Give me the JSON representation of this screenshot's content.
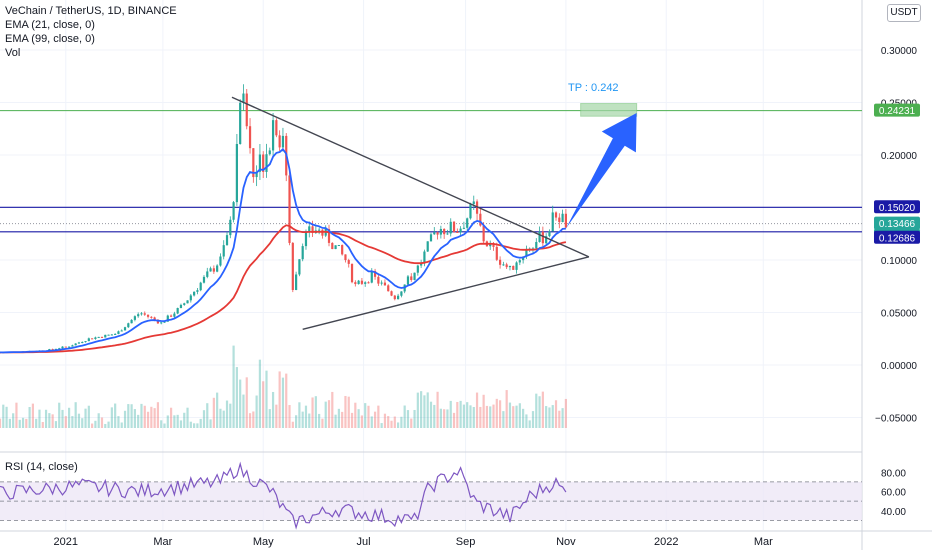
{
  "header": {
    "symbol_line": "VeChain / TetherUS, 1D, BINANCE",
    "ema21_label": "EMA (21, close, 0)",
    "ema99_label": "EMA (99, close, 0)",
    "vol_label": "Vol",
    "currency_button": "USDT"
  },
  "rsi_panel": {
    "label": "RSI (14, close)",
    "ticks": [
      "80.00",
      "60.00",
      "40.00"
    ]
  },
  "annotations": {
    "tp_text": "TP : 0.242"
  },
  "price_axis": {
    "ticks": [
      "0.30000",
      "0.25000",
      "0.20000",
      "0.15000",
      "0.10000",
      "0.05000",
      "0.00000",
      "−0.05000"
    ],
    "tags": [
      {
        "text": "0.24231",
        "color": "#4caf50"
      },
      {
        "text": "0.15020",
        "color": "#1a1aa6"
      },
      {
        "text": "0.13466",
        "color": "#26a69a"
      },
      {
        "text": "13:54:36",
        "color": "#26a69a"
      },
      {
        "text": "0.12686",
        "color": "#1a1aa6"
      }
    ]
  },
  "time_axis": {
    "labels": [
      "2021",
      "Mar",
      "May",
      "Jul",
      "Sep",
      "Nov",
      "2022",
      "Mar"
    ]
  },
  "colors": {
    "bull": "#26a69a",
    "bear": "#ef5350",
    "ema21": "#2962ff",
    "ema99": "#e53935",
    "rsi": "#7e57c2",
    "tp_line": "#4caf50",
    "level_line": "#1a1aa6",
    "arrow": "#2962ff"
  },
  "chart_data": {
    "type": "candlestick",
    "title": "VeChain / TetherUS, 1D, BINANCE",
    "x_range": [
      "2020-11-22",
      "2022-04-30"
    ],
    "y_range": [
      -0.08,
      0.32
    ],
    "horizontal_levels": [
      0.24231,
      0.1502,
      0.12686
    ],
    "last_price": 0.13466,
    "take_profit": 0.242,
    "price_path": [
      [
        "2020-11-22",
        0.012
      ],
      [
        "2020-12-20",
        0.014
      ],
      [
        "2021-01-03",
        0.018
      ],
      [
        "2021-01-15",
        0.025
      ],
      [
        "2021-02-01",
        0.03
      ],
      [
        "2021-02-15",
        0.05
      ],
      [
        "2021-02-28",
        0.04
      ],
      [
        "2021-03-12",
        0.055
      ],
      [
        "2021-03-25",
        0.08
      ],
      [
        "2021-04-05",
        0.1
      ],
      [
        "2021-04-12",
        0.14
      ],
      [
        "2021-04-17",
        0.26
      ],
      [
        "2021-04-20",
        0.24
      ],
      [
        "2021-04-25",
        0.18
      ],
      [
        "2021-05-02",
        0.2
      ],
      [
        "2021-05-08",
        0.24
      ],
      [
        "2021-05-14",
        0.2
      ],
      [
        "2021-05-19",
        0.07
      ],
      [
        "2021-05-25",
        0.12
      ],
      [
        "2021-06-02",
        0.13
      ],
      [
        "2021-06-10",
        0.12
      ],
      [
        "2021-06-20",
        0.1
      ],
      [
        "2021-06-26",
        0.075
      ],
      [
        "2021-07-06",
        0.085
      ],
      [
        "2021-07-20",
        0.065
      ],
      [
        "2021-08-02",
        0.09
      ],
      [
        "2021-08-15",
        0.13
      ],
      [
        "2021-08-28",
        0.13
      ],
      [
        "2021-09-06",
        0.15
      ],
      [
        "2021-09-12",
        0.12
      ],
      [
        "2021-09-22",
        0.1
      ],
      [
        "2021-09-28",
        0.09
      ],
      [
        "2021-10-08",
        0.11
      ],
      [
        "2021-10-20",
        0.125
      ],
      [
        "2021-10-26",
        0.145
      ],
      [
        "2021-11-01",
        0.135
      ]
    ],
    "trendlines": {
      "upper": [
        [
          "2021-04-12",
          0.255
        ],
        [
          "2021-11-15",
          0.103
        ]
      ],
      "lower": [
        [
          "2021-05-25",
          0.034
        ],
        [
          "2021-11-15",
          0.103
        ]
      ]
    },
    "tp_zone": {
      "from": "2021-11-10",
      "to": "2021-12-14",
      "low": 0.237,
      "high": 0.249
    },
    "arrow": {
      "from": [
        "2021-11-01",
        0.13
      ],
      "to": [
        "2021-12-14",
        0.24
      ]
    },
    "rsi": {
      "y_range": [
        20,
        100
      ],
      "bands": [
        70,
        50,
        30
      ],
      "path": [
        [
          "2020-11-22",
          58
        ],
        [
          "2021-01-10",
          66
        ],
        [
          "2021-02-15",
          60
        ],
        [
          "2021-04-05",
          70
        ],
        [
          "2021-04-15",
          84
        ],
        [
          "2021-05-05",
          62
        ],
        [
          "2021-05-19",
          28
        ],
        [
          "2021-06-15",
          42
        ],
        [
          "2021-07-20",
          32
        ],
        [
          "2021-08-01",
          30
        ],
        [
          "2021-08-10",
          65
        ],
        [
          "2021-08-28",
          82
        ],
        [
          "2021-09-07",
          48
        ],
        [
          "2021-09-22",
          38
        ],
        [
          "2021-09-28",
          33
        ],
        [
          "2021-10-10",
          55
        ],
        [
          "2021-10-25",
          70
        ],
        [
          "2021-11-01",
          58
        ]
      ]
    }
  }
}
